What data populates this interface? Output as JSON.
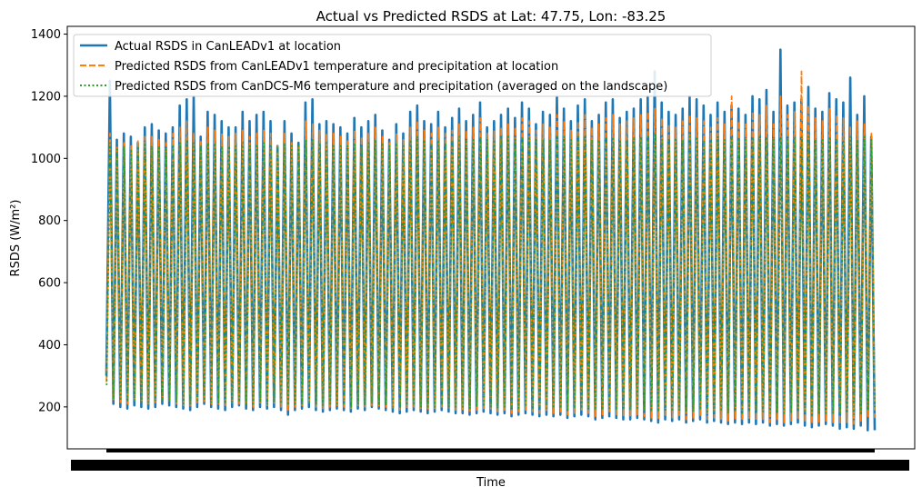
{
  "chart_data": {
    "type": "line",
    "title": "Actual vs Predicted RSDS at Lat: 47.75, Lon: -83.25",
    "xlabel": "Time",
    "ylabel": "RSDS (W/m²)",
    "ylim": [
      65,
      1425
    ],
    "yticks": [
      200,
      400,
      600,
      800,
      1000,
      1200,
      1400
    ],
    "x_tick_labels_note": "Dense overlapping date tick labels render as a solid black band",
    "grid": false,
    "legend_position": "upper-left",
    "n_cycles": 110,
    "series": [
      {
        "name": "Actual RSDS in CanLEADv1 at location",
        "color": "#1f77b4",
        "style": "solid",
        "peaks": [
          1250,
          1060,
          1080,
          1070,
          1050,
          1100,
          1110,
          1090,
          1080,
          1100,
          1170,
          1190,
          1200,
          1070,
          1150,
          1140,
          1120,
          1100,
          1100,
          1150,
          1120,
          1140,
          1150,
          1120,
          1040,
          1120,
          1080,
          1050,
          1180,
          1190,
          1110,
          1120,
          1110,
          1100,
          1080,
          1130,
          1100,
          1120,
          1140,
          1090,
          1060,
          1110,
          1080,
          1150,
          1170,
          1120,
          1110,
          1150,
          1100,
          1130,
          1160,
          1120,
          1140,
          1180,
          1100,
          1120,
          1140,
          1160,
          1130,
          1180,
          1160,
          1110,
          1150,
          1140,
          1200,
          1160,
          1120,
          1170,
          1190,
          1120,
          1140,
          1180,
          1190,
          1130,
          1150,
          1160,
          1190,
          1200,
          1280,
          1180,
          1150,
          1140,
          1160,
          1200,
          1190,
          1170,
          1140,
          1180,
          1150,
          1170,
          1160,
          1140,
          1200,
          1190,
          1220,
          1150,
          1350,
          1170,
          1180,
          1190,
          1230,
          1160,
          1150,
          1210,
          1190,
          1180,
          1260,
          1140,
          1200,
          1070
        ],
        "troughs": [
          300,
          210,
          200,
          195,
          205,
          200,
          195,
          200,
          210,
          205,
          200,
          195,
          190,
          200,
          210,
          200,
          195,
          190,
          200,
          205,
          195,
          190,
          200,
          195,
          200,
          190,
          175,
          190,
          195,
          200,
          190,
          185,
          190,
          195,
          190,
          185,
          195,
          190,
          200,
          195,
          190,
          185,
          180,
          185,
          190,
          185,
          180,
          185,
          190,
          185,
          180,
          180,
          175,
          180,
          185,
          180,
          175,
          180,
          170,
          175,
          180,
          175,
          170,
          175,
          170,
          175,
          165,
          170,
          175,
          170,
          160,
          165,
          170,
          165,
          160,
          160,
          165,
          160,
          155,
          150,
          160,
          155,
          160,
          150,
          155,
          160,
          150,
          155,
          150,
          145,
          150,
          145,
          150,
          145,
          150,
          140,
          145,
          140,
          145,
          150,
          140,
          135,
          140,
          145,
          140,
          130,
          135,
          130,
          140,
          125
        ]
      },
      {
        "name": "Predicted RSDS from CanLEADv1 temperature and precipitation at location",
        "color": "#ff7f0e",
        "style": "dashed",
        "peaks": [
          1080,
          1040,
          1050,
          1040,
          1060,
          1070,
          1070,
          1060,
          1050,
          1080,
          1100,
          1120,
          1080,
          1060,
          1100,
          1090,
          1080,
          1070,
          1080,
          1090,
          1070,
          1080,
          1090,
          1080,
          1040,
          1080,
          1050,
          1040,
          1120,
          1110,
          1090,
          1080,
          1080,
          1070,
          1060,
          1090,
          1070,
          1080,
          1100,
          1070,
          1050,
          1080,
          1060,
          1100,
          1120,
          1090,
          1080,
          1100,
          1080,
          1090,
          1110,
          1090,
          1100,
          1130,
          1080,
          1090,
          1100,
          1110,
          1100,
          1130,
          1120,
          1090,
          1110,
          1100,
          1140,
          1120,
          1090,
          1120,
          1140,
          1100,
          1110,
          1130,
          1140,
          1110,
          1120,
          1130,
          1140,
          1150,
          1160,
          1130,
          1110,
          1100,
          1120,
          1140,
          1130,
          1120,
          1100,
          1130,
          1110,
          1200,
          1120,
          1110,
          1150,
          1140,
          1170,
          1110,
          1200,
          1140,
          1150,
          1280,
          1170,
          1130,
          1120,
          1160,
          1140,
          1130,
          1100,
          1120,
          1110,
          1080
        ],
        "troughs": [
          280,
          220,
          215,
          210,
          215,
          210,
          210,
          215,
          220,
          215,
          210,
          205,
          200,
          210,
          215,
          210,
          205,
          200,
          210,
          210,
          205,
          200,
          210,
          205,
          210,
          200,
          190,
          200,
          205,
          210,
          200,
          195,
          200,
          205,
          200,
          195,
          205,
          200,
          205,
          200,
          200,
          195,
          190,
          195,
          200,
          195,
          190,
          195,
          200,
          195,
          190,
          190,
          185,
          190,
          195,
          190,
          185,
          190,
          180,
          185,
          190,
          185,
          180,
          185,
          180,
          185,
          175,
          180,
          185,
          180,
          170,
          175,
          180,
          175,
          170,
          170,
          175,
          170,
          165,
          160,
          170,
          165,
          170,
          160,
          165,
          170,
          160,
          165,
          160,
          155,
          160,
          155,
          160,
          155,
          160,
          150,
          155,
          150,
          155,
          160,
          150,
          145,
          150,
          155,
          150,
          145,
          150,
          145,
          150,
          165
        ]
      },
      {
        "name": "Predicted RSDS from CanDCS-M6 temperature and precipitation (averaged on the landscape)",
        "color": "#2ca02c",
        "style": "dotted",
        "peaks": [
          1050,
          1030,
          1040,
          1030,
          1040,
          1050,
          1040,
          1040,
          1030,
          1040,
          1050,
          1060,
          1050,
          1040,
          1050,
          1050,
          1040,
          1040,
          1040,
          1050,
          1040,
          1040,
          1050,
          1040,
          1040,
          1050,
          1040,
          1040,
          1060,
          1060,
          1050,
          1050,
          1040,
          1040,
          1040,
          1050,
          1040,
          1050,
          1060,
          1050,
          1040,
          1050,
          1040,
          1060,
          1070,
          1060,
          1050,
          1060,
          1050,
          1060,
          1070,
          1060,
          1060,
          1070,
          1060,
          1060,
          1070,
          1070,
          1060,
          1070,
          1070,
          1060,
          1060,
          1060,
          1070,
          1070,
          1060,
          1070,
          1070,
          1060,
          1060,
          1070,
          1070,
          1060,
          1060,
          1070,
          1070,
          1070,
          1080,
          1060,
          1060,
          1060,
          1060,
          1070,
          1070,
          1060,
          1060,
          1070,
          1060,
          1070,
          1060,
          1060,
          1070,
          1070,
          1070,
          1060,
          1070,
          1060,
          1070,
          1070,
          1070,
          1060,
          1060,
          1070,
          1060,
          1060,
          1070,
          1060,
          1070,
          1060
        ],
        "troughs": [
          270,
          225,
          220,
          220,
          220,
          215,
          215,
          220,
          220,
          220,
          215,
          210,
          210,
          215,
          220,
          215,
          210,
          210,
          215,
          215,
          210,
          210,
          215,
          210,
          215,
          210,
          205,
          210,
          210,
          215,
          210,
          205,
          210,
          210,
          205,
          200,
          210,
          205,
          210,
          205,
          205,
          200,
          200,
          205,
          205,
          200,
          200,
          200,
          205,
          200,
          200,
          200,
          195,
          200,
          200,
          200,
          195,
          200,
          195,
          195,
          200,
          195,
          195,
          195,
          195,
          195,
          190,
          195,
          195,
          195,
          190,
          190,
          195,
          190,
          190,
          190,
          190,
          190,
          185,
          185,
          190,
          185,
          190,
          185,
          185,
          190,
          185,
          185,
          185,
          180,
          185,
          180,
          185,
          180,
          185,
          180,
          180,
          180,
          180,
          185,
          180,
          175,
          180,
          180,
          180,
          175,
          180,
          175,
          180,
          190
        ]
      }
    ]
  }
}
